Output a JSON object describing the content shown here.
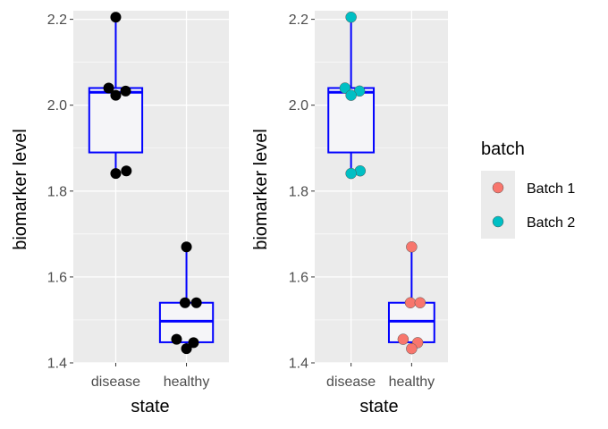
{
  "chart_data": [
    {
      "type": "boxplot",
      "xlabel": "state",
      "ylabel": "biomarker level",
      "categories": [
        "disease",
        "healthy"
      ],
      "ylim": [
        1.4,
        2.22
      ],
      "yticks": [
        1.4,
        1.6,
        1.8,
        2.0,
        2.2
      ],
      "ytick_labels": [
        "1.4",
        "1.6",
        "1.8",
        "2.0",
        "2.2"
      ],
      "grid": true,
      "box_color": "#0000ff",
      "box_fill": "#f5f5f8",
      "boxes": [
        {
          "category": "disease",
          "min": 1.84,
          "q1": 1.89,
          "median": 2.03,
          "q3": 2.04,
          "max": 2.205
        },
        {
          "category": "healthy",
          "min": 1.435,
          "q1": 1.448,
          "median": 1.497,
          "q3": 1.54,
          "max": 1.67
        }
      ],
      "points": [
        {
          "category": "disease",
          "y": 2.205,
          "jitter": 0.0,
          "color": "#000000"
        },
        {
          "category": "disease",
          "y": 2.04,
          "jitter": -0.1,
          "color": "#000000"
        },
        {
          "category": "disease",
          "y": 2.033,
          "jitter": 0.14,
          "color": "#000000"
        },
        {
          "category": "disease",
          "y": 2.023,
          "jitter": 0.0,
          "color": "#000000"
        },
        {
          "category": "disease",
          "y": 1.847,
          "jitter": 0.15,
          "color": "#000000"
        },
        {
          "category": "disease",
          "y": 1.841,
          "jitter": 0.0,
          "color": "#000000"
        },
        {
          "category": "healthy",
          "y": 1.67,
          "jitter": 0.0,
          "color": "#000000"
        },
        {
          "category": "healthy",
          "y": 1.54,
          "jitter": -0.02,
          "color": "#000000"
        },
        {
          "category": "healthy",
          "y": 1.54,
          "jitter": 0.14,
          "color": "#000000"
        },
        {
          "category": "healthy",
          "y": 1.455,
          "jitter": -0.14,
          "color": "#000000"
        },
        {
          "category": "healthy",
          "y": 1.447,
          "jitter": 0.1,
          "color": "#000000"
        },
        {
          "category": "healthy",
          "y": 1.433,
          "jitter": 0.0,
          "color": "#000000"
        }
      ]
    },
    {
      "type": "boxplot",
      "xlabel": "state",
      "ylabel": "biomarker level",
      "categories": [
        "disease",
        "healthy"
      ],
      "ylim": [
        1.4,
        2.22
      ],
      "yticks": [
        1.4,
        1.6,
        1.8,
        2.0,
        2.2
      ],
      "ytick_labels": [
        "1.4",
        "1.6",
        "1.8",
        "2.0",
        "2.2"
      ],
      "grid": true,
      "box_color": "#0000ff",
      "box_fill": "#f5f5f8",
      "boxes": [
        {
          "category": "disease",
          "min": 1.84,
          "q1": 1.89,
          "median": 2.03,
          "q3": 2.04,
          "max": 2.205
        },
        {
          "category": "healthy",
          "min": 1.435,
          "q1": 1.448,
          "median": 1.497,
          "q3": 1.54,
          "max": 1.67
        }
      ],
      "points": [
        {
          "category": "disease",
          "y": 2.205,
          "jitter": 0.0,
          "batch": "Batch 2"
        },
        {
          "category": "disease",
          "y": 2.04,
          "jitter": -0.1,
          "batch": "Batch 2"
        },
        {
          "category": "disease",
          "y": 2.033,
          "jitter": 0.14,
          "batch": "Batch 2"
        },
        {
          "category": "disease",
          "y": 2.023,
          "jitter": 0.0,
          "batch": "Batch 2"
        },
        {
          "category": "disease",
          "y": 1.847,
          "jitter": 0.15,
          "batch": "Batch 2"
        },
        {
          "category": "disease",
          "y": 1.841,
          "jitter": 0.0,
          "batch": "Batch 2"
        },
        {
          "category": "healthy",
          "y": 1.67,
          "jitter": 0.0,
          "batch": "Batch 1"
        },
        {
          "category": "healthy",
          "y": 1.54,
          "jitter": -0.02,
          "batch": "Batch 1"
        },
        {
          "category": "healthy",
          "y": 1.54,
          "jitter": 0.14,
          "batch": "Batch 1"
        },
        {
          "category": "healthy",
          "y": 1.455,
          "jitter": -0.14,
          "batch": "Batch 1"
        },
        {
          "category": "healthy",
          "y": 1.447,
          "jitter": 0.1,
          "batch": "Batch 1"
        },
        {
          "category": "healthy",
          "y": 1.433,
          "jitter": 0.0,
          "batch": "Batch 1"
        }
      ],
      "legend": {
        "title": "batch",
        "placement": "right",
        "entries": [
          {
            "label": "Batch 1",
            "color": "#f8766d"
          },
          {
            "label": "Batch 2",
            "color": "#00bfc4"
          }
        ]
      }
    }
  ]
}
